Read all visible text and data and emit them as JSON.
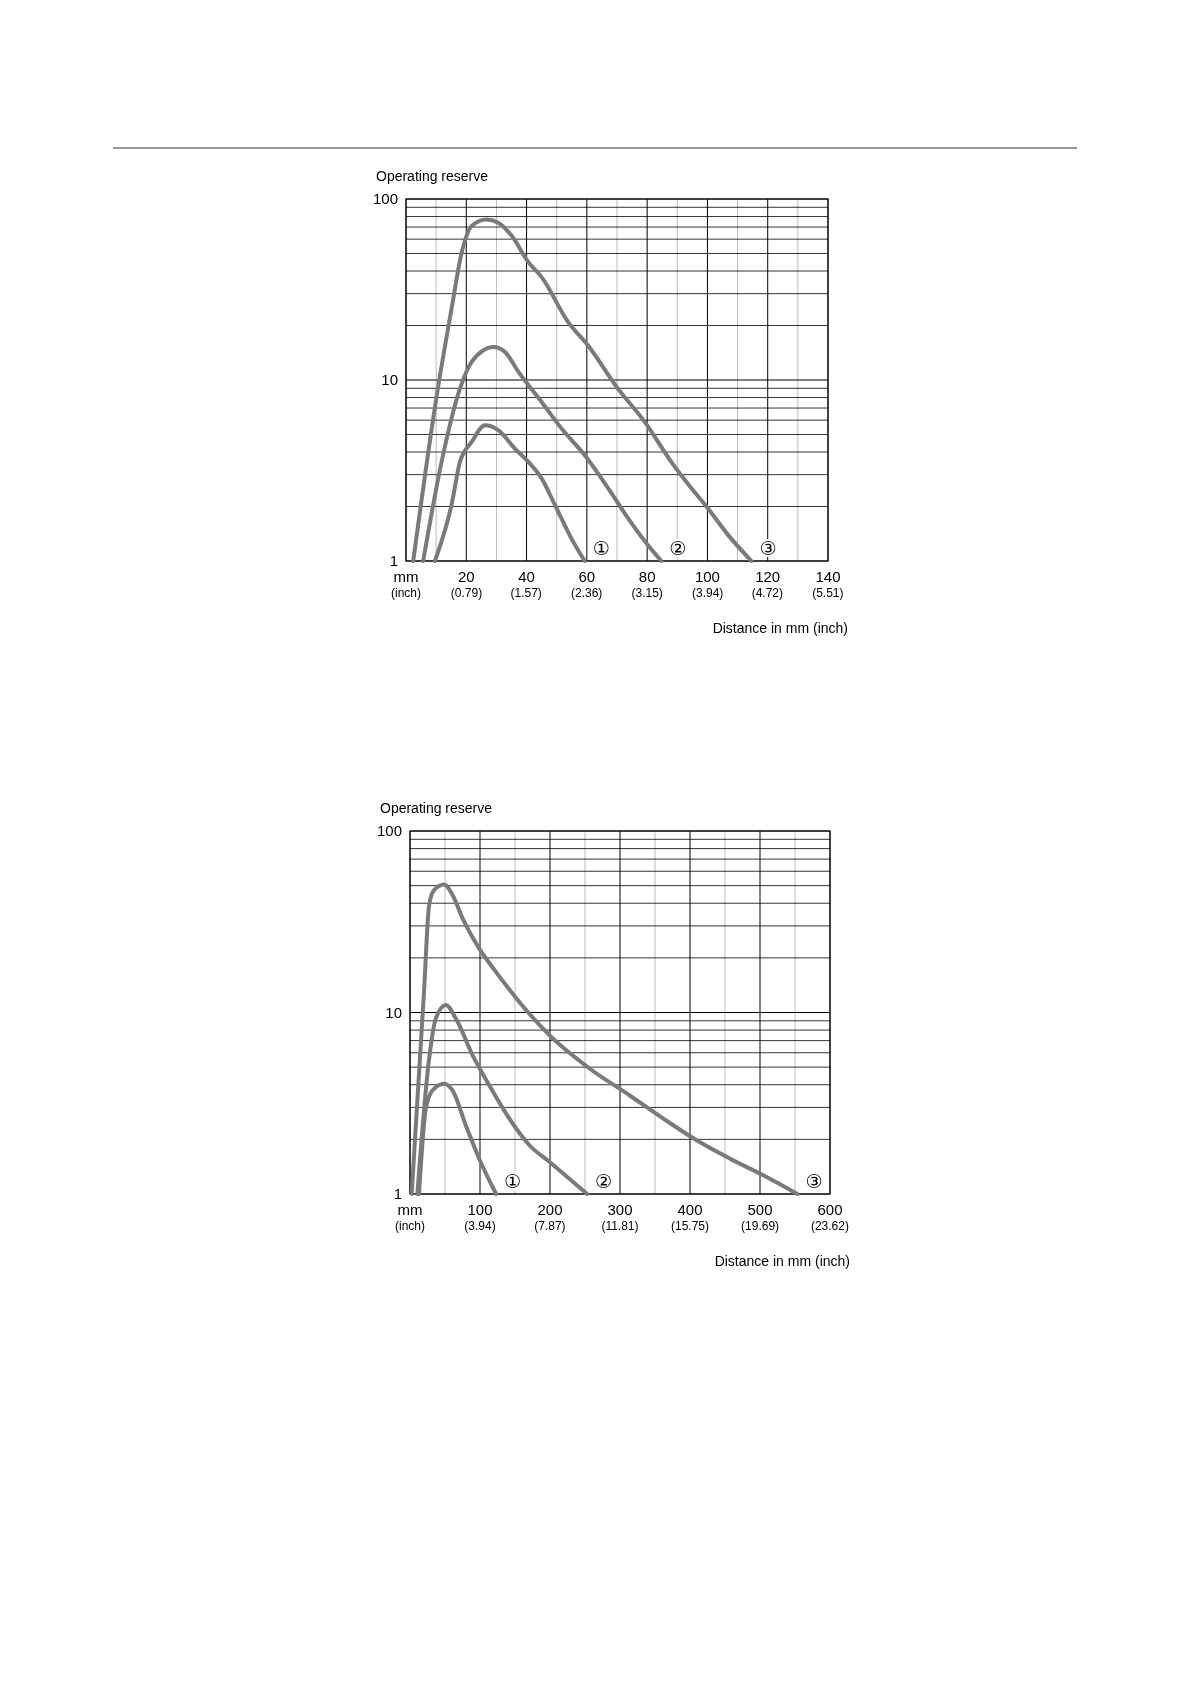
{
  "chart_data": [
    {
      "type": "line",
      "ylabel": "Operating reserve",
      "xlabel": "Distance in mm (inch)",
      "log": "y",
      "grid": true,
      "marker": "none",
      "line_style": "solid",
      "xlim": [
        0,
        140
      ],
      "ylim": [
        1,
        100
      ],
      "yticks": [
        1,
        10,
        100
      ],
      "xticks": [
        {
          "value": 0,
          "label": "mm"
        },
        20,
        40,
        60,
        80,
        100,
        120,
        140
      ],
      "x2lim": [
        0,
        5.5118
      ],
      "x2ticks": [
        {
          "value": 0,
          "label": "(inch)"
        },
        {
          "value": 0.79,
          "label": "(0.79)"
        },
        {
          "value": 1.57,
          "label": "(1.57)"
        },
        {
          "value": 2.36,
          "label": "(2.36)"
        },
        {
          "value": 3.15,
          "label": "(3.15)"
        },
        {
          "value": 3.94,
          "label": "(3.94)"
        },
        {
          "value": 4.72,
          "label": "(4.72)"
        },
        {
          "value": 5.51,
          "label": "(5.51)"
        }
      ],
      "series": [
        {
          "name": "①",
          "color": "#7a7a7a",
          "x": [
            9.6,
            15.1,
            17.9,
            21.8,
            26.2,
            30.6,
            36.1,
            40.6,
            45,
            49.4,
            54.9,
            59.3
          ],
          "values": [
            1,
            2.04,
            3.53,
            4.55,
            5.62,
            5.28,
            4.18,
            3.53,
            2.86,
            2.04,
            1.33,
            1
          ]
        },
        {
          "name": "②",
          "color": "#7a7a7a",
          "x": [
            5.7,
            11.8,
            17.9,
            21.8,
            29,
            32.8,
            37.3,
            45,
            51.6,
            59.3,
            67.1,
            73.7,
            80.3,
            84.7
          ],
          "values": [
            1,
            3.53,
            8.96,
            12.6,
            15.2,
            14.3,
            11.1,
            7.56,
            5.39,
            3.84,
            2.52,
            1.72,
            1.22,
            1
          ]
        },
        {
          "name": "③",
          "color": "#7a7a7a",
          "x": [
            2.4,
            10.2,
            15.1,
            18.5,
            21.8,
            26.7,
            30.6,
            35,
            40.6,
            45,
            53.8,
            60.4,
            70.3,
            79.2,
            88,
            94.7,
            100.2,
            106.9,
            114.6
          ],
          "values": [
            1,
            8.2,
            24.7,
            50.8,
            71,
            77,
            74,
            62.8,
            44.8,
            37,
            20.9,
            15.5,
            8.96,
            5.87,
            3.53,
            2.52,
            1.95,
            1.39,
            1
          ]
        }
      ]
    },
    {
      "type": "line",
      "ylabel": "Operating reserve",
      "xlabel": "Distance in mm (inch)",
      "log": "y",
      "grid": true,
      "marker": "none",
      "line_style": "solid",
      "xlim": [
        0,
        600
      ],
      "ylim": [
        1,
        100
      ],
      "yticks": [
        1,
        10,
        100
      ],
      "xticks": [
        {
          "value": 0,
          "label": "mm"
        },
        100,
        200,
        300,
        400,
        500,
        600
      ],
      "x2lim": [
        0,
        23.622
      ],
      "x2ticks": [
        {
          "value": 0,
          "label": "(inch)"
        },
        {
          "value": 3.94,
          "label": "(3.94)"
        },
        {
          "value": 7.87,
          "label": "(7.87)"
        },
        {
          "value": 11.81,
          "label": "(11.81)"
        },
        {
          "value": 15.75,
          "label": "(15.75)"
        },
        {
          "value": 19.69,
          "label": "(19.69)"
        },
        {
          "value": 23.62,
          "label": "(23.62)"
        }
      ],
      "series": [
        {
          "name": "①",
          "color": "#7a7a7a",
          "x": [
            12.9,
            22.5,
            32,
            48.8,
            60.8,
            79.9,
            99,
            123
          ],
          "values": [
            1,
            2.94,
            3.72,
            4.05,
            3.72,
            2.38,
            1.56,
            1
          ]
        },
        {
          "name": "②",
          "color": "#7a7a7a",
          "x": [
            10.5,
            27.3,
            36.8,
            51.2,
            65.6,
            89.5,
            113.4,
            142,
            171,
            199.5,
            228,
            253
          ],
          "values": [
            1,
            5.56,
            9.25,
            11,
            9.25,
            5.8,
            3.96,
            2.6,
            1.85,
            1.5,
            1.21,
            1
          ]
        },
        {
          "name": "③",
          "color": "#7a7a7a",
          "x": [
            2.4,
            20,
            27.3,
            34.4,
            48.8,
            60.8,
            75.1,
            99,
            123,
            156.5,
            199.5,
            257,
            314,
            362,
            410,
            458,
            506,
            553.6
          ],
          "values": [
            1,
            13,
            39,
            47.2,
            50.8,
            44.4,
            33,
            22.5,
            16.7,
            11.4,
            7.48,
            4.9,
            3.49,
            2.6,
            1.97,
            1.56,
            1.26,
            1
          ]
        }
      ]
    }
  ]
}
